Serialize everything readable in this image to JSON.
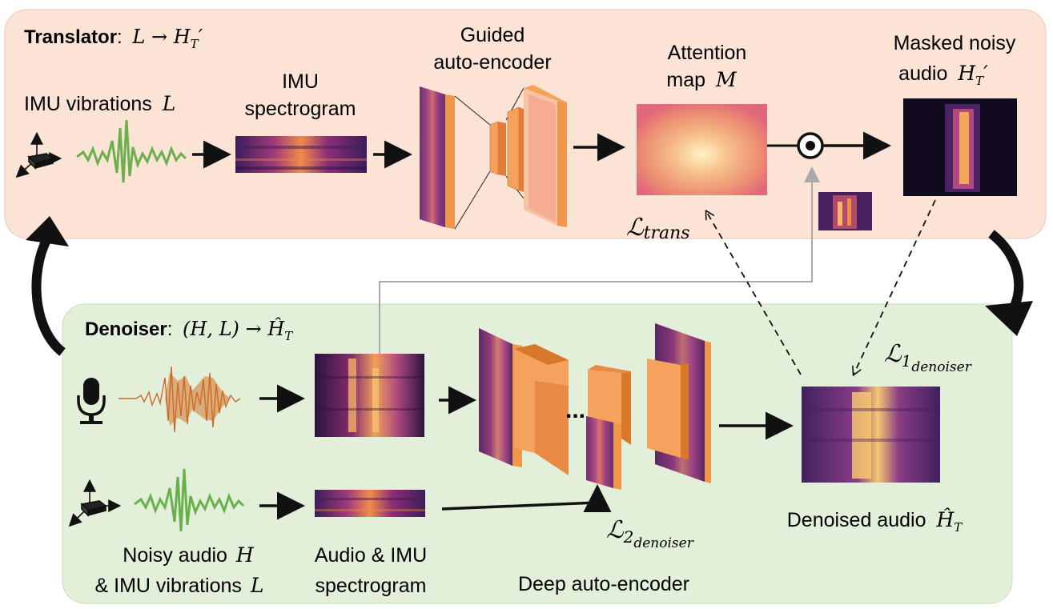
{
  "translator": {
    "title_bold": "Translator",
    "title_colon": ":",
    "title_math": "L → H",
    "title_sub": "T",
    "title_prime": "′",
    "imu_vibrations": "IMU vibrations",
    "imu_vibrations_var": "L",
    "imu_spectrogram_line1": "IMU",
    "imu_spectrogram_line2": "spectrogram",
    "guided_ae_line1": "Guided",
    "guided_ae_line2": "auto-encoder",
    "attention_line1": "Attention",
    "attention_line2": "map",
    "attention_var": "M",
    "masked_line1": "Masked noisy",
    "masked_line2": "audio",
    "masked_var": "H",
    "masked_sub": "T",
    "masked_prime": "′",
    "loss_trans": "ℒ",
    "loss_trans_sub": "trans"
  },
  "denoiser": {
    "title_bold": "Denoiser",
    "title_colon": ":",
    "title_math": "(H, L) → Ĥ",
    "title_sub": "T",
    "noisy_line1": "Noisy audio",
    "noisy_var": "H",
    "noisy_line2": "& IMU vibrations",
    "noisy_var2": "L",
    "spec_line1": "Audio & IMU",
    "spec_line2": "spectrogram",
    "deep_ae": "Deep auto-encoder",
    "ellipsis": "...",
    "denoised": "Denoised audio",
    "denoised_var": "Ĥ",
    "denoised_sub": "T",
    "loss1": "ℒ",
    "loss1_sub": "1",
    "loss1_subsub": "denoiser",
    "loss2": "ℒ",
    "loss2_sub": "2",
    "loss2_subsub": "denoiser"
  },
  "colors": {
    "translator_bg": "#fbe3d6",
    "denoiser_bg": "#e2efd9",
    "waveform_green": "#6ab04c",
    "waveform_orange": "#d2691e",
    "layer_orange": "#f0964b",
    "layer_dark": "#d9772a"
  }
}
